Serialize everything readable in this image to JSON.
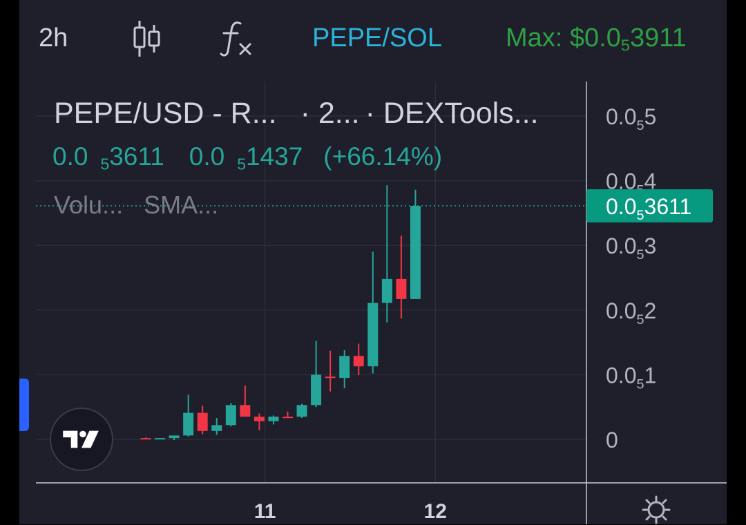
{
  "toolbar": {
    "interval": "2h",
    "candle_icon": "candlestick-icon",
    "indicator_icon": "function-fx-icon",
    "pair": "PEPE/SOL",
    "max_prefix": "Max: $0.0",
    "max_sub": "5",
    "max_rest": "3911"
  },
  "legend": {
    "title": "PEPE/USD - R...",
    "interval": "· 2...",
    "source": "· DEXTools...",
    "price_main": "0.0",
    "price_sub": "5",
    "price_rest": "3611",
    "change_main": "0.0",
    "change_sub": "5",
    "change_rest": "1437",
    "change_pct": "(+66.14%)",
    "indicator_volume": "Volu...",
    "indicator_sma": "SMA..."
  },
  "colors": {
    "up": "#26a69a",
    "down": "#f23645",
    "background": "#1e1f2b",
    "grid": "#2a2e39",
    "axis_text": "#b2b5be",
    "price_label_bg": "#089981"
  },
  "chart_data": {
    "type": "candlestick",
    "title": "PEPE/USD",
    "interval": "2h",
    "y_unit": "× 0.00000",
    "y_ticks": [
      {
        "value": 0,
        "main": "0",
        "sub": "",
        "rest": ""
      },
      {
        "value": 1,
        "main": "0.0",
        "sub": "5",
        "rest": "1"
      },
      {
        "value": 2,
        "main": "0.0",
        "sub": "5",
        "rest": "2"
      },
      {
        "value": 3,
        "main": "0.0",
        "sub": "5",
        "rest": "3"
      },
      {
        "value": 4,
        "main": "0.0",
        "sub": "5",
        "rest": "4"
      },
      {
        "value": 5,
        "main": "0.0",
        "sub": "5",
        "rest": "5"
      }
    ],
    "x_ticks": [
      {
        "index": 8.4,
        "label": "11"
      },
      {
        "index": 20.4,
        "label": "12"
      }
    ],
    "last_price": {
      "value": 3.611,
      "main": "0.0",
      "sub": "5",
      "rest": "3611"
    },
    "ylim": [
      -0.68,
      5.5
    ],
    "candles": [
      {
        "o": 0.02,
        "h": 0.03,
        "l": 0.0,
        "c": 0.01
      },
      {
        "o": 0.01,
        "h": 0.02,
        "l": 0.0,
        "c": 0.02
      },
      {
        "o": 0.02,
        "h": 0.06,
        "l": -0.01,
        "c": 0.06
      },
      {
        "o": 0.06,
        "h": 0.69,
        "l": 0.04,
        "c": 0.41
      },
      {
        "o": 0.41,
        "h": 0.52,
        "l": 0.08,
        "c": 0.13
      },
      {
        "o": 0.13,
        "h": 0.33,
        "l": 0.07,
        "c": 0.22
      },
      {
        "o": 0.22,
        "h": 0.56,
        "l": 0.2,
        "c": 0.53
      },
      {
        "o": 0.53,
        "h": 0.83,
        "l": 0.38,
        "c": 0.35
      },
      {
        "o": 0.35,
        "h": 0.4,
        "l": 0.14,
        "c": 0.28
      },
      {
        "o": 0.28,
        "h": 0.37,
        "l": 0.23,
        "c": 0.35
      },
      {
        "o": 0.35,
        "h": 0.43,
        "l": 0.33,
        "c": 0.33
      },
      {
        "o": 0.35,
        "h": 0.55,
        "l": 0.33,
        "c": 0.53
      },
      {
        "o": 0.53,
        "h": 1.52,
        "l": 0.5,
        "c": 1.0
      },
      {
        "o": 0.97,
        "h": 1.37,
        "l": 0.74,
        "c": 0.95
      },
      {
        "o": 0.95,
        "h": 1.38,
        "l": 0.79,
        "c": 1.29
      },
      {
        "o": 1.29,
        "h": 1.48,
        "l": 0.99,
        "c": 1.13
      },
      {
        "o": 1.13,
        "h": 2.9,
        "l": 1.02,
        "c": 2.11
      },
      {
        "o": 2.11,
        "h": 3.93,
        "l": 1.81,
        "c": 2.48
      },
      {
        "o": 2.48,
        "h": 3.15,
        "l": 1.87,
        "c": 2.17
      },
      {
        "o": 2.17,
        "h": 3.86,
        "l": 2.17,
        "c": 3.61
      }
    ]
  }
}
